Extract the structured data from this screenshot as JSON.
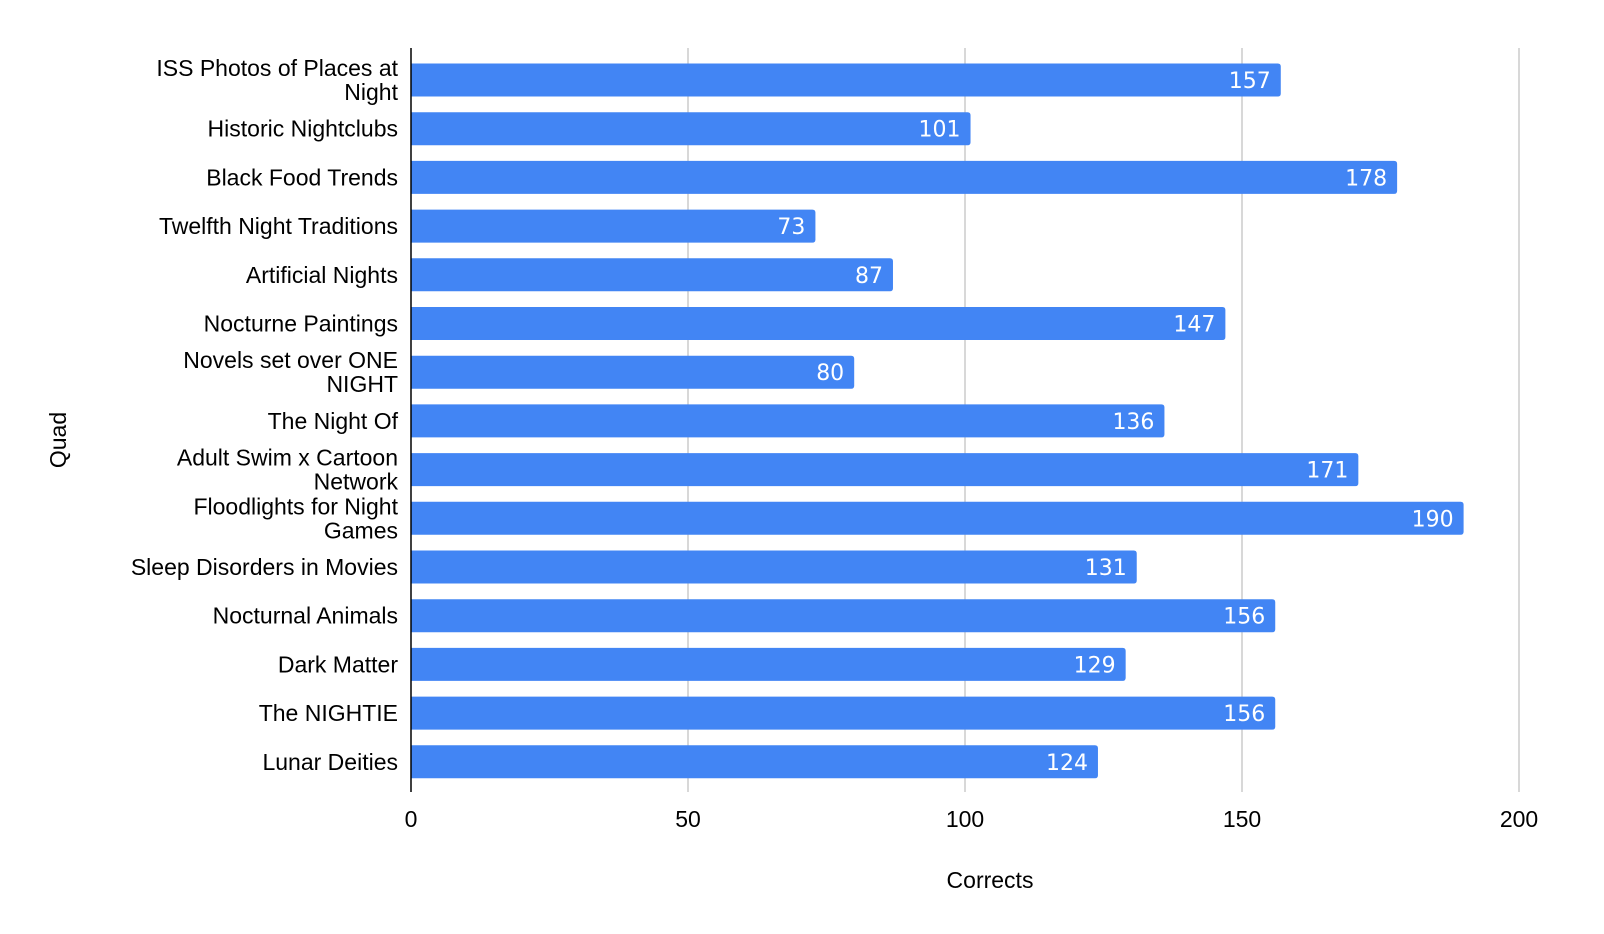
{
  "chart_data": {
    "type": "bar",
    "orientation": "horizontal",
    "categories": [
      "ISS Photos of Places at Night",
      "Historic Nightclubs",
      "Black Food Trends",
      "Twelfth Night Traditions",
      "Artificial Nights",
      "Nocturne Paintings",
      "Novels set over ONE NIGHT",
      "The Night Of",
      "Adult Swim x Cartoon Network",
      "Floodlights for Night Games",
      "Sleep Disorders in Movies",
      "Nocturnal Animals",
      "Dark Matter",
      "The NIGHTIE",
      "Lunar Deities"
    ],
    "category_lines": [
      [
        "ISS Photos of Places at",
        "Night"
      ],
      [
        "Historic Nightclubs"
      ],
      [
        "Black Food Trends"
      ],
      [
        "Twelfth Night Traditions"
      ],
      [
        "Artificial Nights"
      ],
      [
        "Nocturne Paintings"
      ],
      [
        "Novels set over ONE",
        "NIGHT"
      ],
      [
        "The Night Of"
      ],
      [
        "Adult Swim x Cartoon",
        "Network"
      ],
      [
        "Floodlights for Night",
        "Games"
      ],
      [
        "Sleep Disorders in Movies"
      ],
      [
        "Nocturnal Animals"
      ],
      [
        "Dark Matter"
      ],
      [
        "The NIGHTIE"
      ],
      [
        "Lunar Deities"
      ]
    ],
    "values": [
      157,
      101,
      178,
      73,
      87,
      147,
      80,
      136,
      171,
      190,
      131,
      156,
      129,
      156,
      124
    ],
    "data_labels": [
      "157",
      "101",
      "178",
      "73",
      "87",
      "147",
      "80",
      "136",
      "171",
      "190",
      "131",
      "156",
      "129",
      "156",
      "124"
    ],
    "title": "",
    "xlabel": "Corrects",
    "ylabel": "Quad",
    "xlim": [
      0,
      200
    ],
    "xticks": [
      0,
      50,
      100,
      150,
      200
    ],
    "xtick_labels": [
      "0",
      "50",
      "100",
      "150",
      "200"
    ],
    "grid": "vertical",
    "legend": "none",
    "colors": {
      "bar": "#4285f4",
      "grid": "#cccccc",
      "axis": "#000000",
      "data_label": "#ffffff"
    }
  }
}
